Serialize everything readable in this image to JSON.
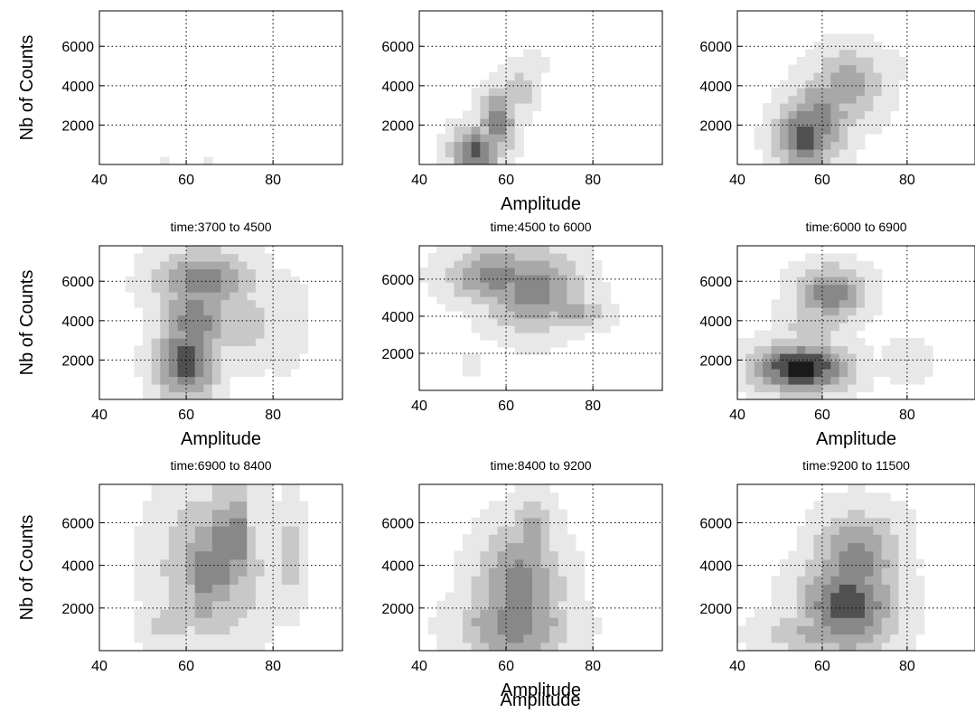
{
  "figure": {
    "x_axis_label": "Amplitude",
    "y_axis_label": "Nb of Counts"
  },
  "chart_data": [
    {
      "type": "contour",
      "panel": 1,
      "title": "",
      "xlabel": "",
      "ylabel": "Nb of Counts",
      "xlim": [
        40,
        96
      ],
      "ylim": [
        0,
        7800
      ],
      "xticks": [
        40,
        60,
        80
      ],
      "yticks": [
        2000,
        4000,
        6000
      ],
      "grid": true,
      "blobs": [
        {
          "x": 55,
          "y": 100,
          "sx": 1.0,
          "sy": 200,
          "level": 1
        },
        {
          "x": 65,
          "y": 100,
          "sx": 1.0,
          "sy": 200,
          "level": 1
        }
      ]
    },
    {
      "type": "contour",
      "panel": 2,
      "title": "",
      "xlabel": "Amplitude",
      "ylabel": "",
      "xlim": [
        40,
        96
      ],
      "ylim": [
        0,
        7800
      ],
      "xticks": [
        40,
        60,
        80
      ],
      "yticks": [
        2000,
        4000,
        6000
      ],
      "grid": true,
      "blobs": [
        {
          "x": 53,
          "y": 700,
          "sx": 4,
          "sy": 900,
          "level": 5
        },
        {
          "x": 58,
          "y": 2200,
          "sx": 3,
          "sy": 1200,
          "level": 4
        },
        {
          "x": 63,
          "y": 3800,
          "sx": 3,
          "sy": 1000,
          "level": 2
        },
        {
          "x": 66,
          "y": 5000,
          "sx": 2.5,
          "sy": 600,
          "level": 1
        }
      ]
    },
    {
      "type": "contour",
      "panel": 3,
      "title": "",
      "xlabel": "",
      "ylabel": "",
      "xlim": [
        40,
        96
      ],
      "ylim": [
        0,
        7800
      ],
      "xticks": [
        40,
        60,
        80
      ],
      "yticks": [
        2000,
        4000,
        6000
      ],
      "grid": true,
      "blobs": [
        {
          "x": 56,
          "y": 1500,
          "sx": 5,
          "sy": 1300,
          "level": 5
        },
        {
          "x": 60,
          "y": 2500,
          "sx": 5,
          "sy": 1500,
          "level": 4
        },
        {
          "x": 66,
          "y": 4000,
          "sx": 6,
          "sy": 1400,
          "level": 3
        },
        {
          "x": 72,
          "y": 4800,
          "sx": 6,
          "sy": 900,
          "level": 1
        }
      ]
    },
    {
      "type": "contour",
      "panel": 4,
      "title": "time:3700 to 4500",
      "xlabel": "Amplitude",
      "ylabel": "Nb of Counts",
      "xlim": [
        40,
        96
      ],
      "ylim": [
        0,
        7800
      ],
      "xticks": [
        40,
        60,
        80
      ],
      "yticks": [
        2000,
        4000,
        6000
      ],
      "grid": true,
      "blobs": [
        {
          "x": 60,
          "y": 2000,
          "sx": 5,
          "sy": 1500,
          "level": 5
        },
        {
          "x": 62,
          "y": 4000,
          "sx": 6,
          "sy": 1700,
          "level": 4
        },
        {
          "x": 64,
          "y": 6000,
          "sx": 8,
          "sy": 1200,
          "level": 4
        },
        {
          "x": 73,
          "y": 4000,
          "sx": 6,
          "sy": 1600,
          "level": 2
        },
        {
          "x": 82,
          "y": 4000,
          "sx": 5,
          "sy": 2000,
          "level": 1
        }
      ]
    },
    {
      "type": "contour",
      "panel": 5,
      "title": "time:4500 to 6000",
      "xlabel": "",
      "ylabel": "",
      "xlim": [
        40,
        96
      ],
      "ylim": [
        0,
        7800
      ],
      "xticks": [
        40,
        60,
        80
      ],
      "yticks": [
        2000,
        4000,
        6000
      ],
      "grid": true,
      "blobs": [
        {
          "x": 56,
          "y": 4000,
          "sx": 4,
          "sy": 500,
          "level": 1
        },
        {
          "x": 58,
          "y": 6200,
          "sx": 8,
          "sy": 1100,
          "level": 4
        },
        {
          "x": 66,
          "y": 5500,
          "sx": 8,
          "sy": 1600,
          "level": 4
        },
        {
          "x": 68,
          "y": 5500,
          "sx": 4,
          "sy": 800,
          "level": 2
        },
        {
          "x": 75,
          "y": 4200,
          "sx": 6,
          "sy": 600,
          "level": 3
        },
        {
          "x": 52,
          "y": 1300,
          "sx": 2,
          "sy": 500,
          "level": 1
        }
      ]
    },
    {
      "type": "contour",
      "panel": 6,
      "title": "time:6000 to 6900",
      "xlabel": "Amplitude",
      "ylabel": "",
      "xlim": [
        40,
        96
      ],
      "ylim": [
        0,
        7800
      ],
      "xticks": [
        40,
        60,
        80
      ],
      "yticks": [
        2000,
        4000,
        6000
      ],
      "grid": true,
      "blobs": [
        {
          "x": 55,
          "y": 1600,
          "sx": 8,
          "sy": 900,
          "level": 6
        },
        {
          "x": 62,
          "y": 5400,
          "sx": 6,
          "sy": 1000,
          "level": 4
        },
        {
          "x": 58,
          "y": 3700,
          "sx": 6,
          "sy": 1500,
          "level": 2
        },
        {
          "x": 80,
          "y": 2000,
          "sx": 5,
          "sy": 900,
          "level": 1
        }
      ]
    },
    {
      "type": "contour",
      "panel": 7,
      "title": "time:6900 to 8400",
      "xlabel": "",
      "ylabel": "Nb of Counts",
      "xlim": [
        40,
        96
      ],
      "ylim": [
        0,
        7800
      ],
      "xticks": [
        40,
        60,
        80
      ],
      "yticks": [
        2000,
        4000,
        6000
      ],
      "grid": true,
      "blobs": [
        {
          "x": 66,
          "y": 4000,
          "sx": 9,
          "sy": 2600,
          "level": 3
        },
        {
          "x": 64,
          "y": 3700,
          "sx": 1.5,
          "sy": 2000,
          "level": 5
        },
        {
          "x": 68,
          "y": 4500,
          "sx": 1.5,
          "sy": 2200,
          "level": 5
        },
        {
          "x": 72,
          "y": 5300,
          "sx": 1.5,
          "sy": 1600,
          "level": 5
        },
        {
          "x": 56,
          "y": 1200,
          "sx": 5,
          "sy": 700,
          "level": 2
        },
        {
          "x": 84,
          "y": 4500,
          "sx": 2.5,
          "sy": 2000,
          "level": 2
        }
      ]
    },
    {
      "type": "contour",
      "panel": 8,
      "title": "time:8400 to 9200",
      "xlabel": "Amplitude",
      "ylabel": "",
      "xlim": [
        40,
        96
      ],
      "ylim": [
        0,
        7800
      ],
      "xticks": [
        40,
        60,
        80
      ],
      "yticks": [
        2000,
        4000,
        6000
      ],
      "grid": true,
      "blobs": [
        {
          "x": 62,
          "y": 1200,
          "sx": 9,
          "sy": 1200,
          "level": 4
        },
        {
          "x": 63,
          "y": 3000,
          "sx": 7,
          "sy": 2000,
          "level": 4
        },
        {
          "x": 66,
          "y": 5500,
          "sx": 4,
          "sy": 1200,
          "level": 3
        }
      ]
    },
    {
      "type": "contour",
      "panel": 9,
      "title": "time:9200 to 11500",
      "xlabel": "",
      "ylabel": "",
      "xlim": [
        40,
        96
      ],
      "ylim": [
        0,
        7800
      ],
      "xticks": [
        40,
        60,
        80
      ],
      "yticks": [
        2000,
        4000,
        6000
      ],
      "grid": true,
      "blobs": [
        {
          "x": 66,
          "y": 2200,
          "sx": 8,
          "sy": 1700,
          "level": 5
        },
        {
          "x": 68,
          "y": 4200,
          "sx": 7,
          "sy": 1600,
          "level": 4
        },
        {
          "x": 60,
          "y": 900,
          "sx": 10,
          "sy": 700,
          "level": 3
        },
        {
          "x": 72,
          "y": 5500,
          "sx": 6,
          "sy": 1000,
          "level": 2
        }
      ]
    }
  ],
  "colors": {
    "levels": [
      "#ffffff",
      "#e8e8e8",
      "#c8c8c8",
      "#a8a8a8",
      "#888888",
      "#505050",
      "#1a1a1a"
    ],
    "grid": "#000000",
    "axis": "#000000"
  }
}
